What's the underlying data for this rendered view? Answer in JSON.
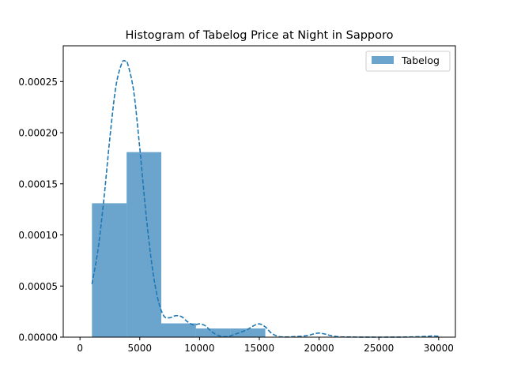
{
  "chart_data": {
    "type": "bar",
    "title": "Histogram of Tabelog Price at Night in Sapporo",
    "xlabel": "",
    "ylabel": "",
    "xlim": [
      -1400,
      31400
    ],
    "ylim": [
      0,
      0.000285
    ],
    "x_ticks": [
      {
        "value": 0,
        "label": "0"
      },
      {
        "value": 5000,
        "label": "5000"
      },
      {
        "value": 10000,
        "label": "10000"
      },
      {
        "value": 15000,
        "label": "15000"
      },
      {
        "value": 20000,
        "label": "20000"
      },
      {
        "value": 25000,
        "label": "25000"
      },
      {
        "value": 30000,
        "label": "30000"
      }
    ],
    "y_ticks": [
      {
        "value": 0,
        "label": "0.00000"
      },
      {
        "value": 5e-05,
        "label": "0.00005"
      },
      {
        "value": 0.0001,
        "label": "0.00010"
      },
      {
        "value": 0.00015,
        "label": "0.00015"
      },
      {
        "value": 0.0002,
        "label": "0.00020"
      },
      {
        "value": 0.00025,
        "label": "0.00025"
      }
    ],
    "series": [
      {
        "name": "Tabelog",
        "kind": "histogram",
        "color": "#1f77b4",
        "opacity": 0.66,
        "bins": [
          {
            "start": 1000,
            "end": 3900,
            "density": 0.000131
          },
          {
            "start": 3900,
            "end": 6800,
            "density": 0.000181
          },
          {
            "start": 6800,
            "end": 9700,
            "density": 1.35e-05
          },
          {
            "start": 9700,
            "end": 12600,
            "density": 8.5e-06
          },
          {
            "start": 12600,
            "end": 15500,
            "density": 8.5e-06
          },
          {
            "start": 15500,
            "end": 18400,
            "density": 0
          },
          {
            "start": 18400,
            "end": 21300,
            "density": 0
          },
          {
            "start": 21300,
            "end": 24200,
            "density": 0
          },
          {
            "start": 24200,
            "end": 27100,
            "density": 0
          },
          {
            "start": 27100,
            "end": 30000,
            "density": 0
          }
        ]
      },
      {
        "kind": "kde",
        "line_style": "dashed",
        "color": "#1f77b4",
        "x": [
          1000,
          1500,
          2000,
          2500,
          3000,
          3500,
          3800,
          4000,
          4500,
          5000,
          5500,
          6000,
          6500,
          7000,
          7500,
          8000,
          8500,
          9000,
          9500,
          10000,
          10500,
          11000,
          11500,
          12000,
          12500,
          13000,
          13500,
          14000,
          14500,
          15000,
          15500,
          16000,
          16500,
          17000,
          18000,
          19000,
          19500,
          20000,
          20500,
          21000,
          21500,
          22000,
          23000,
          25000,
          27000,
          28000,
          29000,
          29500,
          30000
        ],
        "y": [
          5.2e-05,
          8.5e-05,
          0.000135,
          0.000195,
          0.000245,
          0.000268,
          0.00027,
          0.000267,
          0.00024,
          0.000185,
          0.000123,
          7.2e-05,
          3.8e-05,
          2.1e-05,
          1.9e-05,
          2.1e-05,
          2e-05,
          1.5e-05,
          1.2e-05,
          1.3e-05,
          1.1e-05,
          5.5e-06,
          2e-06,
          5e-07,
          1e-06,
          3e-06,
          5e-06,
          7.5e-06,
          1.1e-05,
          1.3e-05,
          1e-05,
          4e-06,
          1e-06,
          2e-07,
          5e-07,
          1.5e-06,
          3e-06,
          4e-06,
          3e-06,
          1.5e-06,
          5e-07,
          2e-07,
          1e-07,
          0,
          1e-07,
          3e-07,
          8e-07,
          1.2e-06,
          8e-07
        ]
      }
    ],
    "legend": {
      "position": "top-right",
      "entries": [
        "Tabelog"
      ]
    },
    "grid": false
  }
}
